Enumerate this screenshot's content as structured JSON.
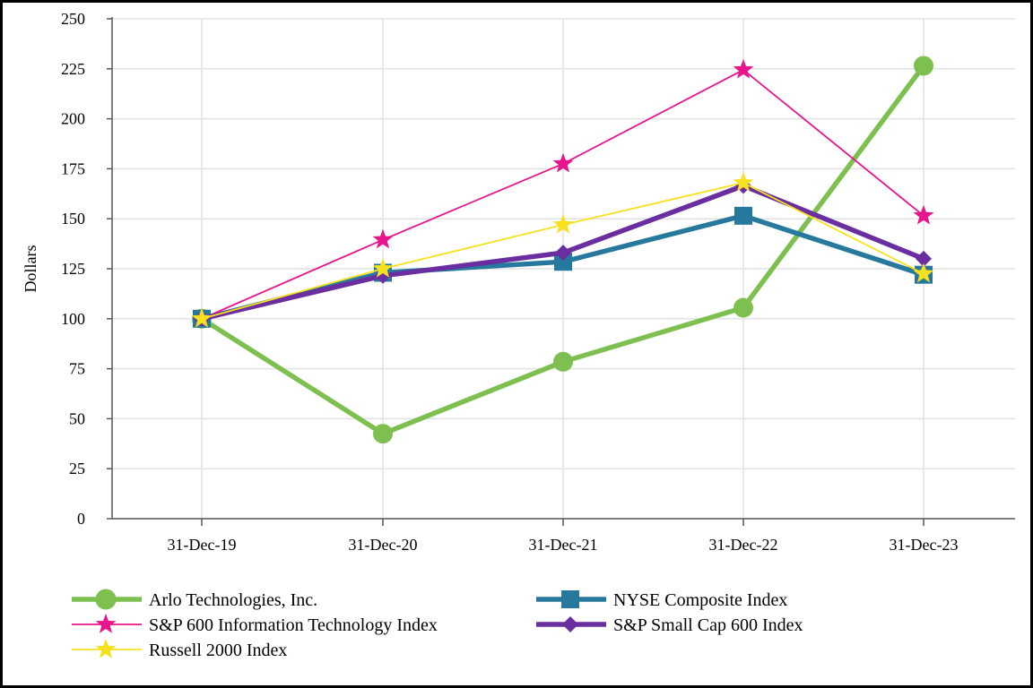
{
  "chart_data": {
    "type": "line",
    "title": "",
    "xlabel": "",
    "ylabel": "Dollars",
    "ylim": [
      0,
      250
    ],
    "yticks": [
      0,
      25,
      50,
      75,
      100,
      125,
      150,
      175,
      200,
      225,
      250
    ],
    "categories": [
      "31-Dec-19",
      "31-Dec-20",
      "31-Dec-21",
      "31-Dec-22",
      "31-Dec-23"
    ],
    "grid": true,
    "legend_position": "bottom",
    "series": [
      {
        "name": "Arlo Technologies, Inc.",
        "values": [
          100,
          42.5,
          78.5,
          105.5,
          226.5
        ],
        "color": "#7dc050",
        "marker": "circle",
        "width": "thick"
      },
      {
        "name": "NYSE Composite Index",
        "values": [
          100,
          123,
          128.5,
          151.5,
          122
        ],
        "color": "#26789c",
        "marker": "square",
        "width": "thick"
      },
      {
        "name": "S&P 600 Information Technology Index",
        "values": [
          100,
          139.5,
          177.5,
          224.5,
          151.5
        ],
        "color": "#e8168c",
        "marker": "star",
        "width": "thin"
      },
      {
        "name": "S&P Small Cap 600 Index",
        "values": [
          100,
          121.5,
          133,
          166.5,
          130
        ],
        "color": "#6a2ea0",
        "marker": "diamond",
        "width": "thick"
      },
      {
        "name": "Russell 2000 Index",
        "values": [
          100,
          125,
          147,
          168,
          122.5
        ],
        "color": "#f7e11f",
        "marker": "star",
        "width": "thin"
      }
    ]
  }
}
